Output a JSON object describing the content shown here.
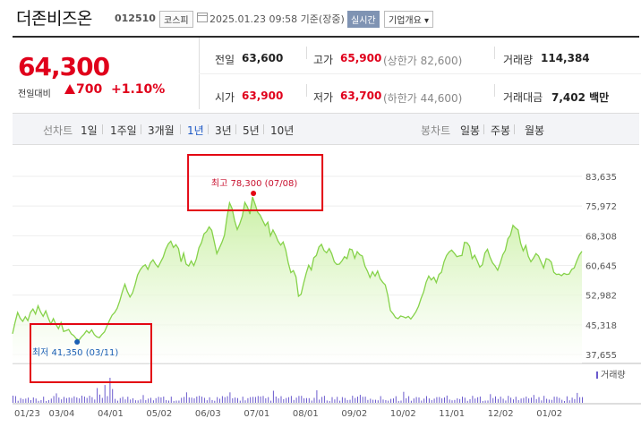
{
  "header": {
    "name": "더존비즈온",
    "code": "012510",
    "market": "코스피",
    "timestamp": "2025.01.23 09:58 기준(장중)",
    "realtime_btn": "실시간",
    "company_btn": "기업개요 ▾"
  },
  "price": {
    "current": "64,300",
    "change_label": "전일대비",
    "change": "700",
    "change_pct": "+1.10%"
  },
  "stats": {
    "prev_label": "전일",
    "prev": "63,600",
    "high_label": "고가",
    "high": "65,900",
    "upper_limit": "(상한가 82,600)",
    "volume_label": "거래량",
    "volume": "114,384",
    "open_label": "시가",
    "open": "63,900",
    "low_label": "저가",
    "low": "63,700",
    "lower_limit": "(하한가 44,600)",
    "amount_label": "거래대금",
    "amount": "7,402 백만"
  },
  "tabs": {
    "line_label": "선차트",
    "periods": [
      "1일",
      "1주일",
      "3개월",
      "1년",
      "3년",
      "5년",
      "10년"
    ],
    "active": "1년",
    "candle_label": "봉차트",
    "candles": [
      "일봉",
      "주봉",
      "월봉"
    ]
  },
  "chart_data": {
    "type": "area",
    "ylim": [
      37655,
      83635
    ],
    "y_ticks": [
      "83,635",
      "75,972",
      "68,308",
      "60,645",
      "52,982",
      "45,318",
      "37,655"
    ],
    "x_ticks": [
      "01/23",
      "03/04",
      "04/01",
      "05/02",
      "06/03",
      "07/01",
      "08/01",
      "09/02",
      "10/02",
      "11/01",
      "12/02",
      "01/02"
    ],
    "y_values": [
      43000,
      46000,
      48500,
      47000,
      46200,
      47400,
      46400,
      48500,
      49400,
      48100,
      50200,
      48600,
      47500,
      48900,
      47100,
      45500,
      46900,
      45400,
      44300,
      45900,
      43600,
      43800,
      44100,
      43000,
      42500,
      41700,
      41350,
      42200,
      42900,
      43800,
      43200,
      44000,
      42800,
      42200,
      42000,
      42800,
      43500,
      45000,
      46500,
      47800,
      48500,
      49600,
      51500,
      53800,
      55800,
      53900,
      52500,
      53500,
      55700,
      58200,
      59500,
      60400,
      60800,
      59600,
      61300,
      62100,
      61000,
      60200,
      61500,
      62800,
      64800,
      66200,
      66900,
      65300,
      66000,
      65000,
      61600,
      63800,
      61000,
      60500,
      61800,
      60600,
      62300,
      65200,
      66500,
      68800,
      69400,
      70600,
      69700,
      66800,
      63700,
      65100,
      66600,
      68400,
      73200,
      76800,
      75300,
      72200,
      69900,
      71400,
      73400,
      76900,
      75700,
      73900,
      78300,
      76500,
      74400,
      73600,
      72200,
      70900,
      71800,
      68300,
      69800,
      68500,
      66900,
      65900,
      66700,
      64600,
      61300,
      58800,
      59300,
      57700,
      52700,
      53200,
      56000,
      58600,
      60700,
      59500,
      62600,
      63200,
      65400,
      66100,
      64500,
      63900,
      65000,
      63700,
      61600,
      60900,
      61000,
      61800,
      62900,
      62400,
      64900,
      64700,
      62500,
      64200,
      63400,
      63100,
      60500,
      59200,
      57500,
      59000,
      57900,
      59200,
      57200,
      56300,
      55600,
      52900,
      49000,
      48200,
      47200,
      46900,
      47600,
      47400,
      47100,
      47500,
      46800,
      47700,
      48700,
      50100,
      52100,
      53800,
      56300,
      57900,
      56900,
      57600,
      56200,
      58300,
      58900,
      61600,
      63200,
      64100,
      64600,
      63800,
      62900,
      63100,
      63200,
      66600,
      66500,
      65600,
      62400,
      63300,
      61800,
      60200,
      60800,
      63800,
      64800,
      62800,
      61300,
      60500,
      59400,
      61200,
      63400,
      64500,
      67500,
      68400,
      71000,
      70300,
      69800,
      66300,
      64400,
      65800,
      63000,
      61600,
      62500,
      63700,
      63100,
      61500,
      60000,
      62400,
      62200,
      61500,
      58900,
      58300,
      58400,
      58000,
      58600,
      58300,
      58400,
      59600,
      60000,
      61800,
      63300,
      64300
    ],
    "max_label": "최고 78,300 (07/08)",
    "min_label": "최저 41,350 (03/11)",
    "volume_legend": "거래량",
    "line_color": "#86d24a",
    "fill_color": "#c7ef9f",
    "highlight_color": "#e30613"
  }
}
